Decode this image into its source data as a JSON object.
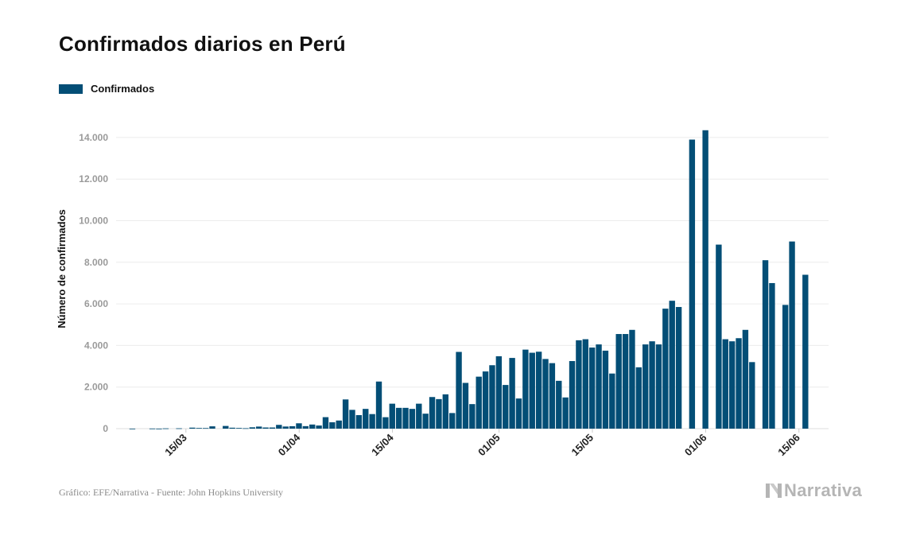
{
  "header": {
    "title": "Confirmados diarios en Perú"
  },
  "legend": {
    "label": "Confirmados",
    "color": "#034e76"
  },
  "footer": {
    "source": "Gráfico: EFE/Narrativa - Fuente: John Hopkins University",
    "brand": "Narrativa"
  },
  "chart_data": {
    "type": "bar",
    "title": "Confirmados diarios en Perú",
    "xlabel": "",
    "ylabel": "Número de confirmados",
    "ylim": [
      0,
      14800
    ],
    "yticks": [
      0,
      2000,
      4000,
      6000,
      8000,
      10000,
      12000,
      14000
    ],
    "ytick_labels": [
      "0",
      "2.000",
      "4.000",
      "6.000",
      "8.000",
      "10.000",
      "12.000",
      "14.000"
    ],
    "xtick_labels": [
      {
        "date": "2020-03-15",
        "label": "15/03"
      },
      {
        "date": "2020-04-01",
        "label": "01/04"
      },
      {
        "date": "2020-04-15",
        "label": "15/04"
      },
      {
        "date": "2020-05-01",
        "label": "01/05"
      },
      {
        "date": "2020-05-15",
        "label": "15/05"
      },
      {
        "date": "2020-06-01",
        "label": "01/06"
      },
      {
        "date": "2020-06-15",
        "label": "15/06"
      }
    ],
    "grid": true,
    "legend_position": "top-left",
    "series": [
      {
        "name": "Confirmados",
        "color": "#034e76",
        "points": [
          {
            "x": "2020-03-07",
            "y": 1
          },
          {
            "x": "2020-03-08",
            "y": 0
          },
          {
            "x": "2020-03-09",
            "y": 0
          },
          {
            "x": "2020-03-10",
            "y": 6
          },
          {
            "x": "2020-03-11",
            "y": 2
          },
          {
            "x": "2020-03-12",
            "y": 13
          },
          {
            "x": "2020-03-13",
            "y": 0
          },
          {
            "x": "2020-03-14",
            "y": 16
          },
          {
            "x": "2020-03-15",
            "y": 0
          },
          {
            "x": "2020-03-16",
            "y": 48
          },
          {
            "x": "2020-03-17",
            "y": 31
          },
          {
            "x": "2020-03-18",
            "y": 28
          },
          {
            "x": "2020-03-19",
            "y": 111
          },
          {
            "x": "2020-03-20",
            "y": 0
          },
          {
            "x": "2020-03-21",
            "y": 129
          },
          {
            "x": "2020-03-22",
            "y": 45
          },
          {
            "x": "2020-03-23",
            "y": 32
          },
          {
            "x": "2020-03-24",
            "y": 21
          },
          {
            "x": "2020-03-25",
            "y": 64
          },
          {
            "x": "2020-03-26",
            "y": 100
          },
          {
            "x": "2020-03-27",
            "y": 55
          },
          {
            "x": "2020-03-28",
            "y": 55
          },
          {
            "x": "2020-03-29",
            "y": 181
          },
          {
            "x": "2020-03-30",
            "y": 102
          },
          {
            "x": "2020-03-31",
            "y": 117
          },
          {
            "x": "2020-04-01",
            "y": 257
          },
          {
            "x": "2020-04-02",
            "y": 120
          },
          {
            "x": "2020-04-03",
            "y": 198
          },
          {
            "x": "2020-04-04",
            "y": 150
          },
          {
            "x": "2020-04-05",
            "y": 552
          },
          {
            "x": "2020-04-06",
            "y": 307
          },
          {
            "x": "2020-04-07",
            "y": 390
          },
          {
            "x": "2020-04-08",
            "y": 1404
          },
          {
            "x": "2020-04-09",
            "y": 903
          },
          {
            "x": "2020-04-10",
            "y": 650
          },
          {
            "x": "2020-04-11",
            "y": 950
          },
          {
            "x": "2020-04-12",
            "y": 700
          },
          {
            "x": "2020-04-13",
            "y": 2265
          },
          {
            "x": "2020-04-14",
            "y": 550
          },
          {
            "x": "2020-04-15",
            "y": 1200
          },
          {
            "x": "2020-04-16",
            "y": 1000
          },
          {
            "x": "2020-04-17",
            "y": 1000
          },
          {
            "x": "2020-04-18",
            "y": 950
          },
          {
            "x": "2020-04-19",
            "y": 1200
          },
          {
            "x": "2020-04-20",
            "y": 720
          },
          {
            "x": "2020-04-21",
            "y": 1520
          },
          {
            "x": "2020-04-22",
            "y": 1420
          },
          {
            "x": "2020-04-23",
            "y": 1650
          },
          {
            "x": "2020-04-24",
            "y": 750
          },
          {
            "x": "2020-04-25",
            "y": 3690
          },
          {
            "x": "2020-04-26",
            "y": 2200
          },
          {
            "x": "2020-04-27",
            "y": 1180
          },
          {
            "x": "2020-04-28",
            "y": 2500
          },
          {
            "x": "2020-04-29",
            "y": 2750
          },
          {
            "x": "2020-04-30",
            "y": 3050
          },
          {
            "x": "2020-05-01",
            "y": 3480
          },
          {
            "x": "2020-05-02",
            "y": 2100
          },
          {
            "x": "2020-05-03",
            "y": 3400
          },
          {
            "x": "2020-05-04",
            "y": 1450
          },
          {
            "x": "2020-05-05",
            "y": 3800
          },
          {
            "x": "2020-05-06",
            "y": 3650
          },
          {
            "x": "2020-05-07",
            "y": 3700
          },
          {
            "x": "2020-05-08",
            "y": 3350
          },
          {
            "x": "2020-05-09",
            "y": 3150
          },
          {
            "x": "2020-05-10",
            "y": 2300
          },
          {
            "x": "2020-05-11",
            "y": 1500
          },
          {
            "x": "2020-05-12",
            "y": 3250
          },
          {
            "x": "2020-05-13",
            "y": 4250
          },
          {
            "x": "2020-05-14",
            "y": 4300
          },
          {
            "x": "2020-05-15",
            "y": 3900
          },
          {
            "x": "2020-05-16",
            "y": 4050
          },
          {
            "x": "2020-05-17",
            "y": 3750
          },
          {
            "x": "2020-05-18",
            "y": 2650
          },
          {
            "x": "2020-05-19",
            "y": 4550
          },
          {
            "x": "2020-05-20",
            "y": 4550
          },
          {
            "x": "2020-05-21",
            "y": 4750
          },
          {
            "x": "2020-05-22",
            "y": 2950
          },
          {
            "x": "2020-05-23",
            "y": 4050
          },
          {
            "x": "2020-05-24",
            "y": 4200
          },
          {
            "x": "2020-05-25",
            "y": 4050
          },
          {
            "x": "2020-05-26",
            "y": 5770
          },
          {
            "x": "2020-05-27",
            "y": 6150
          },
          {
            "x": "2020-05-28",
            "y": 5850
          },
          {
            "x": "2020-05-29",
            "y": 0
          },
          {
            "x": "2020-05-30",
            "y": 13900
          },
          {
            "x": "2020-05-31",
            "y": 0
          },
          {
            "x": "2020-06-01",
            "y": 14350
          },
          {
            "x": "2020-06-02",
            "y": 0
          },
          {
            "x": "2020-06-03",
            "y": 8850
          },
          {
            "x": "2020-06-04",
            "y": 4300
          },
          {
            "x": "2020-06-05",
            "y": 4200
          },
          {
            "x": "2020-06-06",
            "y": 4350
          },
          {
            "x": "2020-06-07",
            "y": 4750
          },
          {
            "x": "2020-06-08",
            "y": 3200
          },
          {
            "x": "2020-06-09",
            "y": 0
          },
          {
            "x": "2020-06-10",
            "y": 8100
          },
          {
            "x": "2020-06-11",
            "y": 7000
          },
          {
            "x": "2020-06-12",
            "y": 0
          },
          {
            "x": "2020-06-13",
            "y": 5950
          },
          {
            "x": "2020-06-14",
            "y": 9000
          },
          {
            "x": "2020-06-15",
            "y": 0
          },
          {
            "x": "2020-06-16",
            "y": 7400
          },
          {
            "x": "2020-06-17",
            "y": 0
          }
        ]
      }
    ]
  }
}
